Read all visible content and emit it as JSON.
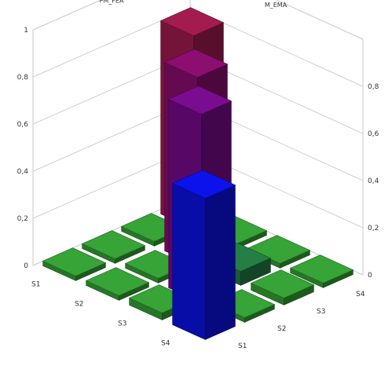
{
  "chart_data": {
    "type": "bar",
    "title": "",
    "rows_axis": {
      "labels": [
        "S1",
        "S2",
        "S3",
        "S4"
      ]
    },
    "cols_axis": {
      "labels": [
        "S1",
        "S2",
        "S3",
        "S4"
      ]
    },
    "z_axis": {
      "ticks": [
        "0",
        "0,2",
        "0,4",
        "0,6",
        "0,8",
        "1"
      ],
      "ticks_right": [
        "0",
        "0,2",
        "0,4",
        "0,6",
        "0,8"
      ],
      "zlim": [
        0,
        1
      ]
    },
    "wall_labels": {
      "left": "PM_FEA",
      "right": "M_EMA"
    },
    "grid": true,
    "cells": [
      {
        "row": "S1",
        "col": "S4",
        "value": 0.82,
        "color": "#8e1845"
      },
      {
        "row": "S1",
        "col": "S3",
        "value": 0.02,
        "color": "#2f8f2f"
      },
      {
        "row": "S1",
        "col": "S2",
        "value": 0.02,
        "color": "#2f8f2f"
      },
      {
        "row": "S1",
        "col": "S1",
        "value": 0.02,
        "color": "#2f8f2f"
      },
      {
        "row": "S2",
        "col": "S4",
        "value": 0.02,
        "color": "#2f8f2f"
      },
      {
        "row": "S2",
        "col": "S3",
        "value": 0.8,
        "color": "#7b0c62"
      },
      {
        "row": "S2",
        "col": "S2",
        "value": 0.02,
        "color": "#2f8f2f"
      },
      {
        "row": "S2",
        "col": "S1",
        "value": 0.02,
        "color": "#2f8f2f"
      },
      {
        "row": "S3",
        "col": "S4",
        "value": 0.02,
        "color": "#2f8f2f"
      },
      {
        "row": "S3",
        "col": "S3",
        "value": 0.06,
        "color": "#1f6e3c"
      },
      {
        "row": "S3",
        "col": "S2",
        "value": 0.8,
        "color": "#6a0a7c"
      },
      {
        "row": "S3",
        "col": "S1",
        "value": 0.03,
        "color": "#2f8f2f"
      },
      {
        "row": "S4",
        "col": "S4",
        "value": 0.02,
        "color": "#2f8f2f"
      },
      {
        "row": "S4",
        "col": "S3",
        "value": 0.03,
        "color": "#2f8f2f"
      },
      {
        "row": "S4",
        "col": "S2",
        "value": 0.02,
        "color": "#2f8f2f"
      },
      {
        "row": "S4",
        "col": "S1",
        "value": 0.6,
        "color": "#0a10cc"
      }
    ]
  }
}
